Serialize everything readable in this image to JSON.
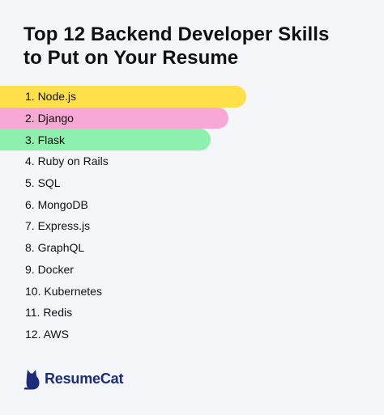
{
  "title": {
    "line1": "Top 12 Backend Developer Skills",
    "line2": "to Put on Your Resume"
  },
  "skills": [
    {
      "label": "1. Node.js",
      "color": "#ffe04a"
    },
    {
      "label": "2. Django",
      "color": "#f7a8d4"
    },
    {
      "label": "3. Flask",
      "color": "#8df0ad"
    },
    {
      "label": "4. Ruby on Rails"
    },
    {
      "label": "5. SQL"
    },
    {
      "label": "6. MongoDB"
    },
    {
      "label": "7. Express.js"
    },
    {
      "label": "8. GraphQL"
    },
    {
      "label": "9. Docker"
    },
    {
      "label": "10. Kubernetes"
    },
    {
      "label": "11. Redis"
    },
    {
      "label": "12. AWS"
    }
  ],
  "brand": {
    "name": "ResumeCat",
    "icon": "cat-logo-icon",
    "color": "#1c2c7a"
  }
}
